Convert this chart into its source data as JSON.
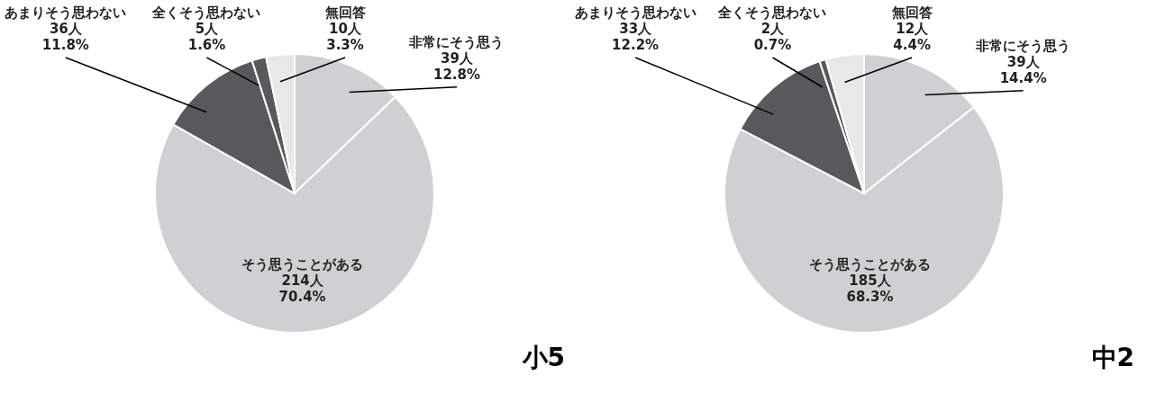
{
  "chart_data": [
    {
      "type": "pie",
      "title": "小5",
      "categories": [
        "非常にそう思う",
        "そう思うことがある",
        "あまりそう思わない",
        "全くそう思わない",
        "無回答"
      ],
      "values": [
        39,
        214,
        36,
        5,
        10
      ],
      "value_labels": [
        "39人\n12.8%",
        "214人\n70.4%",
        "36人\n11.8%",
        "5人\n1.6%",
        "10人\n3.3%"
      ],
      "colors": [
        "#d0d0d2",
        "#d0d0d2",
        "#58595b",
        "#58595b",
        "#e8e8e8"
      ],
      "legend": false
    },
    {
      "type": "pie",
      "title": "中2",
      "categories": [
        "非常にそう思う",
        "そう思うことがある",
        "あまりそう思わない",
        "全くそう思わない",
        "無回答"
      ],
      "values": [
        39,
        185,
        33,
        2,
        12
      ],
      "value_labels": [
        "39人\n14.4%",
        "185人\n68.3%",
        "33人\n12.2%",
        "2人\n0.7%",
        "12人\n4.4%"
      ],
      "colors": [
        "#d0d0d2",
        "#d0d0d2",
        "#58595b",
        "#58595b",
        "#e8e8e8"
      ],
      "legend": false
    }
  ]
}
